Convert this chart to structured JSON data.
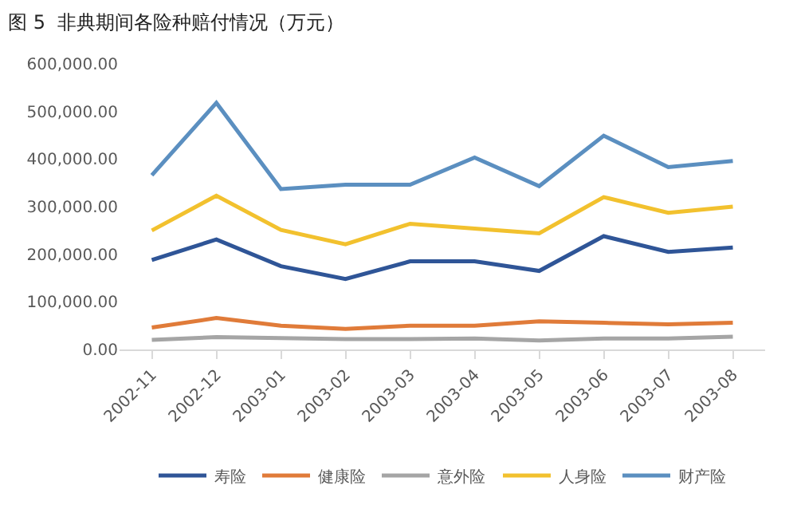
{
  "chart_data": {
    "type": "line",
    "title": "图 5  非典期间各险种赔付情况（万元）",
    "categories": [
      "2002-11",
      "2002-12",
      "2003-01",
      "2003-02",
      "2003-03",
      "2003-04",
      "2003-05",
      "2003-06",
      "2003-07",
      "2003-08"
    ],
    "series": [
      {
        "name": "寿险",
        "color": "#2f5597",
        "values": [
          188000,
          231000,
          175000,
          148000,
          185000,
          185000,
          165000,
          238000,
          205000,
          214000
        ]
      },
      {
        "name": "健康险",
        "color": "#e07b39",
        "values": [
          46000,
          66000,
          50000,
          43000,
          50000,
          50000,
          59000,
          56000,
          53000,
          56000
        ]
      },
      {
        "name": "意外险",
        "color": "#a5a5a5",
        "values": [
          20000,
          26000,
          24000,
          22000,
          22000,
          23000,
          19000,
          23000,
          23000,
          27000
        ]
      },
      {
        "name": "人身险",
        "color": "#f2c12e",
        "values": [
          250000,
          323000,
          251000,
          221000,
          264000,
          254000,
          244000,
          320000,
          287000,
          300000
        ]
      },
      {
        "name": "财产险",
        "color": "#5b8fc0",
        "values": [
          366000,
          518000,
          337000,
          346000,
          346000,
          403000,
          343000,
          449000,
          383000,
          396000
        ]
      }
    ],
    "ylim": [
      0,
      600000
    ],
    "yticks": [
      {
        "value": 0,
        "label": "0.00"
      },
      {
        "value": 100000,
        "label": "100,000.00"
      },
      {
        "value": 200000,
        "label": "200,000.00"
      },
      {
        "value": 300000,
        "label": "300,000.00"
      },
      {
        "value": 400000,
        "label": "400,000.00"
      },
      {
        "value": 500000,
        "label": "500,000.00"
      },
      {
        "value": 600000,
        "label": "600,000.00"
      }
    ],
    "legend": "bottom",
    "marker": "none",
    "line_style": "solid"
  }
}
